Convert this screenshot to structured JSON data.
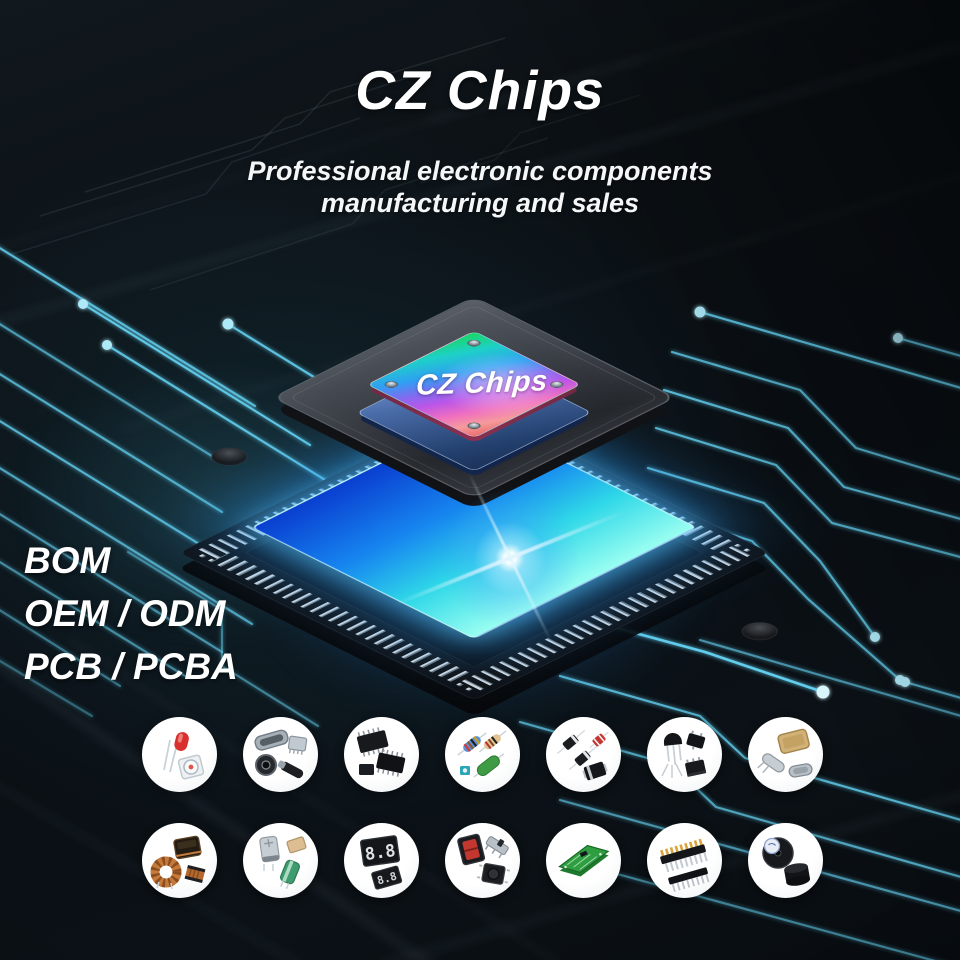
{
  "brand": {
    "title": "CZ Chips",
    "tagline_line1": "Professional electronic components",
    "tagline_line2": "manufacturing and sales"
  },
  "chip_stack": {
    "top_chip_label": "CZ Chips"
  },
  "services": {
    "items": [
      "BOM",
      "OEM / ODM",
      "PCB / PCBA"
    ]
  },
  "component_gallery": {
    "row1": [
      {
        "name": "leds"
      },
      {
        "name": "connectors"
      },
      {
        "name": "ic-chips"
      },
      {
        "name": "resistors"
      },
      {
        "name": "diodes"
      },
      {
        "name": "transistors"
      },
      {
        "name": "crystal-oscillators"
      }
    ],
    "row2": [
      {
        "name": "inductors"
      },
      {
        "name": "capacitors"
      },
      {
        "name": "seven-segment-displays"
      },
      {
        "name": "switches"
      },
      {
        "name": "pcb-boards"
      },
      {
        "name": "pin-headers"
      },
      {
        "name": "buzzers"
      }
    ]
  },
  "colors": {
    "background": "#0a0f14",
    "trace_cyan": "#62cdec",
    "glow_blue": "#1e90ff",
    "slab_gray": "#3b3f46",
    "blue_chip": "#4a6ca8",
    "holo_gradient": [
      "#18d85e",
      "#1ed0c8",
      "#2f9ff2",
      "#7f6cf0",
      "#bb55e8",
      "#ef6fc0",
      "#e96a6a"
    ],
    "text_white": "#ffffff"
  }
}
